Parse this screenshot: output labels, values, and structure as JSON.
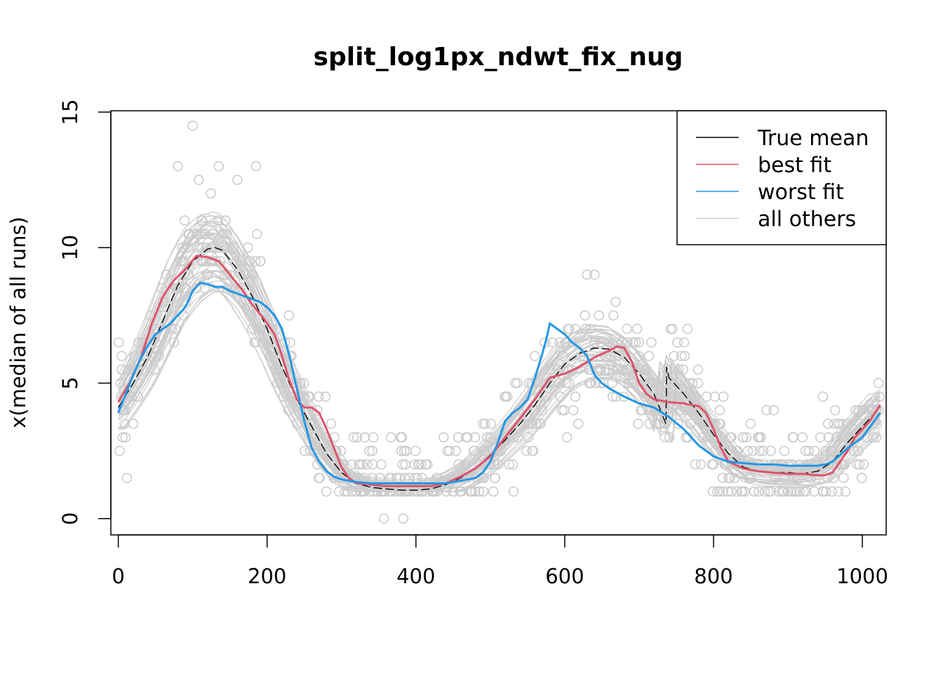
{
  "chart_data": {
    "type": "line",
    "title": "split_log1px_ndwt_fix_nug",
    "xlabel": "",
    "ylabel": "x(median of all runs)",
    "xlim": [
      -10,
      1032
    ],
    "ylim": [
      -0.6,
      15.05
    ],
    "x_ticks": [
      "0",
      "200",
      "400",
      "600",
      "800",
      "1000"
    ],
    "y_ticks": [
      "0",
      "5",
      "10",
      "15"
    ],
    "legend": {
      "position": "top-right",
      "entries": [
        {
          "label": "True mean",
          "color": "#000000"
        },
        {
          "label": "best fit",
          "color": "#DF536B"
        },
        {
          "label": "worst fit",
          "color": "#2297E6"
        },
        {
          "label": "all others",
          "color": "#CCCCCC"
        }
      ]
    },
    "series": [
      {
        "name": "True mean",
        "color": "#000000",
        "dashed": true,
        "x": [
          0,
          20,
          40,
          60,
          80,
          100,
          120,
          130,
          140,
          160,
          180,
          200,
          220,
          240,
          260,
          280,
          300,
          320,
          340,
          360,
          380,
          400,
          420,
          440,
          460,
          480,
          500,
          520,
          540,
          560,
          580,
          600,
          620,
          640,
          660,
          680,
          700,
          720,
          736,
          737,
          740,
          760,
          780,
          800,
          820,
          840,
          860,
          880,
          900,
          920,
          940,
          960,
          980,
          1000,
          1024
        ],
        "y": [
          4.1,
          5.0,
          6.0,
          7.3,
          8.6,
          9.5,
          9.95,
          10.0,
          9.9,
          9.2,
          8.2,
          7.0,
          5.6,
          4.4,
          3.4,
          2.4,
          1.7,
          1.3,
          1.15,
          1.1,
          1.05,
          1.05,
          1.1,
          1.25,
          1.5,
          1.85,
          2.35,
          2.9,
          3.5,
          4.2,
          5.0,
          5.7,
          6.1,
          6.3,
          6.25,
          5.95,
          5.35,
          4.6,
          3.5,
          5.6,
          5.2,
          4.6,
          3.9,
          3.1,
          2.4,
          1.9,
          1.75,
          1.7,
          1.7,
          1.65,
          1.75,
          2.1,
          2.8,
          3.4,
          4.1
        ]
      },
      {
        "name": "best fit",
        "color": "#DF536B",
        "dashed": false,
        "x": [
          0,
          15,
          30,
          45,
          60,
          75,
          90,
          105,
          120,
          135,
          150,
          165,
          180,
          195,
          210,
          220,
          230,
          240,
          250,
          260,
          270,
          280,
          290,
          300,
          310,
          320,
          340,
          360,
          380,
          400,
          420,
          440,
          460,
          480,
          500,
          520,
          540,
          560,
          580,
          600,
          620,
          640,
          660,
          670,
          680,
          690,
          700,
          710,
          720,
          740,
          760,
          780,
          790,
          800,
          810,
          820,
          840,
          860,
          880,
          900,
          920,
          940,
          950,
          960,
          970,
          980,
          990,
          1000,
          1010,
          1024
        ],
        "y": [
          4.3,
          5.0,
          5.9,
          7.2,
          8.2,
          8.8,
          9.2,
          9.7,
          9.65,
          9.5,
          9.0,
          8.5,
          7.9,
          7.4,
          6.8,
          6.0,
          5.1,
          4.4,
          4.1,
          4.1,
          3.9,
          3.3,
          2.6,
          1.9,
          1.5,
          1.3,
          1.25,
          1.2,
          1.2,
          1.2,
          1.2,
          1.3,
          1.55,
          1.85,
          2.3,
          3.0,
          3.7,
          4.4,
          5.2,
          5.35,
          5.6,
          5.95,
          6.2,
          6.35,
          6.3,
          5.8,
          5.0,
          4.6,
          4.4,
          4.3,
          4.25,
          4.15,
          3.9,
          3.3,
          2.6,
          2.1,
          1.85,
          1.75,
          1.7,
          1.65,
          1.65,
          1.6,
          1.6,
          1.7,
          2.1,
          2.5,
          3.0,
          3.3,
          3.6,
          4.2
        ]
      },
      {
        "name": "worst fit",
        "color": "#2297E6",
        "dashed": false,
        "x": [
          0,
          10,
          20,
          30,
          40,
          50,
          60,
          70,
          80,
          90,
          100,
          110,
          120,
          130,
          140,
          150,
          160,
          170,
          180,
          190,
          200,
          210,
          220,
          230,
          240,
          250,
          260,
          270,
          280,
          290,
          300,
          320,
          340,
          360,
          380,
          400,
          420,
          440,
          460,
          470,
          480,
          490,
          500,
          510,
          520,
          530,
          540,
          550,
          560,
          570,
          575,
          580,
          585,
          590,
          600,
          610,
          620,
          630,
          640,
          650,
          660,
          680,
          700,
          720,
          740,
          760,
          780,
          800,
          820,
          840,
          860,
          880,
          900,
          920,
          940,
          950,
          960,
          980,
          1000,
          1024
        ],
        "y": [
          3.9,
          4.6,
          5.3,
          5.9,
          6.4,
          6.8,
          7.0,
          7.2,
          7.5,
          7.8,
          8.4,
          8.7,
          8.65,
          8.55,
          8.55,
          8.4,
          8.3,
          8.2,
          8.1,
          8.0,
          7.8,
          7.5,
          7.0,
          6.0,
          4.8,
          3.6,
          2.6,
          2.1,
          1.75,
          1.55,
          1.45,
          1.35,
          1.3,
          1.3,
          1.3,
          1.3,
          1.3,
          1.3,
          1.4,
          1.45,
          1.5,
          1.7,
          2.1,
          2.8,
          3.6,
          3.9,
          4.1,
          4.4,
          5.2,
          6.1,
          6.6,
          7.2,
          7.1,
          7.0,
          6.8,
          6.5,
          6.3,
          6.0,
          5.3,
          5.0,
          4.8,
          4.5,
          4.25,
          4.1,
          3.75,
          3.3,
          2.7,
          2.3,
          2.1,
          2.05,
          2.0,
          2.0,
          1.95,
          1.95,
          1.95,
          2.0,
          2.1,
          2.6,
          3.0,
          3.9
        ]
      }
    ],
    "others_count": 48,
    "points_per_run": 120
  }
}
